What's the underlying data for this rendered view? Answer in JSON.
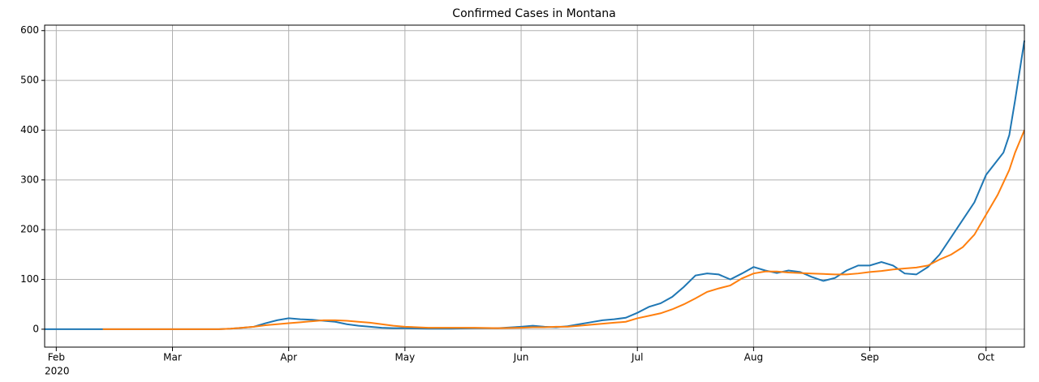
{
  "chart_data": {
    "type": "line",
    "title": "Confirmed Cases in  Montana",
    "x": [
      1.9,
      2.0,
      2.2,
      2.4,
      2.6,
      2.8,
      3.0,
      3.2,
      3.4,
      3.5,
      3.6,
      3.7,
      3.8,
      3.9,
      4.0,
      4.1,
      4.2,
      4.3,
      4.4,
      4.5,
      4.6,
      4.7,
      4.8,
      4.9,
      5.0,
      5.2,
      5.4,
      5.6,
      5.8,
      6.0,
      6.1,
      6.2,
      6.3,
      6.4,
      6.5,
      6.6,
      6.7,
      6.8,
      6.9,
      7.0,
      7.1,
      7.2,
      7.3,
      7.4,
      7.5,
      7.6,
      7.7,
      7.8,
      7.9,
      8.0,
      8.1,
      8.2,
      8.3,
      8.4,
      8.5,
      8.6,
      8.7,
      8.8,
      8.9,
      9.0,
      9.1,
      9.2,
      9.3,
      9.4,
      9.5,
      9.6,
      9.7,
      9.8,
      9.9,
      10.0,
      10.1,
      10.15,
      10.2,
      10.25,
      10.33
    ],
    "series": [
      {
        "color": "#1f77b4",
        "values": [
          0,
          0,
          0,
          0,
          0,
          0,
          0,
          0,
          0,
          1,
          3,
          5,
          12,
          18,
          22,
          20,
          19,
          17,
          15,
          10,
          7,
          5,
          3,
          2,
          2,
          1,
          1,
          2,
          2,
          5,
          7,
          5,
          4,
          6,
          10,
          14,
          18,
          20,
          23,
          33,
          45,
          52,
          65,
          85,
          108,
          112,
          110,
          100,
          112,
          125,
          118,
          113,
          118,
          115,
          105,
          97,
          103,
          118,
          128,
          128,
          135,
          128,
          112,
          110,
          125,
          150,
          185,
          220,
          255,
          310,
          340,
          355,
          390,
          460,
          580
        ]
      },
      {
        "color": "#ff7f0e",
        "values": [
          null,
          null,
          null,
          0,
          0,
          0,
          0,
          0,
          0,
          1,
          3,
          5,
          8,
          10,
          12,
          14,
          16,
          18,
          18,
          17,
          15,
          13,
          10,
          7,
          5,
          3,
          3,
          3,
          2,
          3,
          4,
          4,
          5,
          5,
          7,
          9,
          11,
          13,
          15,
          22,
          27,
          32,
          40,
          50,
          62,
          75,
          82,
          88,
          102,
          112,
          116,
          116,
          114,
          113,
          112,
          111,
          110,
          110,
          112,
          115,
          117,
          120,
          122,
          124,
          128,
          140,
          150,
          165,
          190,
          230,
          270,
          295,
          320,
          355,
          400
        ]
      }
    ],
    "xlim": [
      1.9,
      10.33
    ],
    "xticks": [
      {
        "value": 2,
        "label": "Feb"
      },
      {
        "value": 3,
        "label": "Mar"
      },
      {
        "value": 4,
        "label": "Apr"
      },
      {
        "value": 5,
        "label": "May"
      },
      {
        "value": 6,
        "label": "Jun"
      },
      {
        "value": 7,
        "label": "Jul"
      },
      {
        "value": 8,
        "label": "Aug"
      },
      {
        "value": 9,
        "label": "Sep"
      },
      {
        "value": 10,
        "label": "Oct"
      }
    ],
    "year_label": "2020",
    "ylim": [
      -36,
      611
    ],
    "yticks": [
      0,
      100,
      200,
      300,
      400,
      500,
      600
    ],
    "grid": true
  }
}
